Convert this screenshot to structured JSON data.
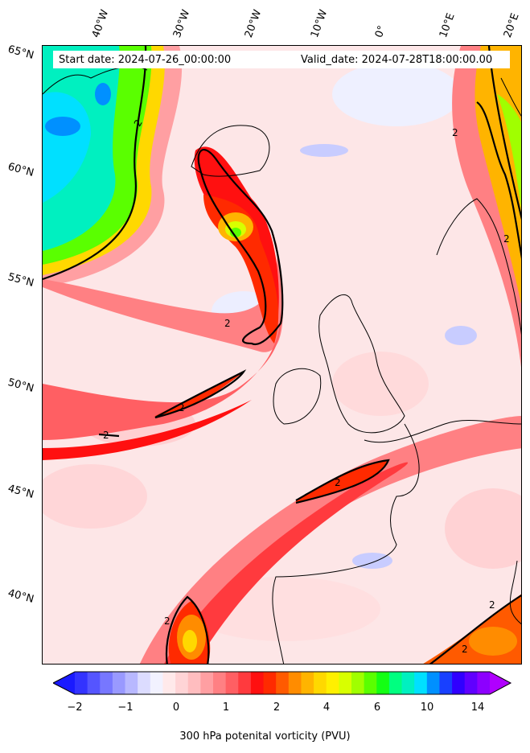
{
  "map": {
    "start_date": "Start date: 2024-07-26_00:00:00",
    "valid_date": "Valid_date: 2024-07-28T18:00:00.00",
    "lon_labels": [
      "40°W",
      "30°W",
      "20°W",
      "10°W",
      "0°",
      "10°E",
      "20°E"
    ],
    "lat_labels": [
      "65°N",
      "60°N",
      "55°N",
      "50°N",
      "45°N",
      "40°N"
    ],
    "contour_level_label": "2",
    "field": "300 hPa potential vorticity",
    "colorbar": {
      "label": "300 hPa potenital vorticity (PVU)",
      "ticks": [
        "−2",
        "−1",
        "0",
        "1",
        "2",
        "4",
        "6",
        "10",
        "14"
      ],
      "colors": [
        "#1a1aff",
        "#3333ff",
        "#5555ff",
        "#7777ff",
        "#9999ff",
        "#b8b8ff",
        "#dcdcff",
        "#f2f2ff",
        "#ffe9ea",
        "#ffd4d6",
        "#ffbdbf",
        "#ff9fa2",
        "#ff8083",
        "#ff5f63",
        "#ff3a3e",
        "#ff1010",
        "#ff2a00",
        "#ff5a00",
        "#ff8c00",
        "#ffb400",
        "#ffd800",
        "#fff000",
        "#d8ff00",
        "#a0ff00",
        "#5aff00",
        "#14ff14",
        "#00ff80",
        "#00f0c0",
        "#00e0ff",
        "#0090ff",
        "#1840ff",
        "#3000ff",
        "#6000ff",
        "#8c00ff",
        "#b000ff"
      ]
    }
  }
}
